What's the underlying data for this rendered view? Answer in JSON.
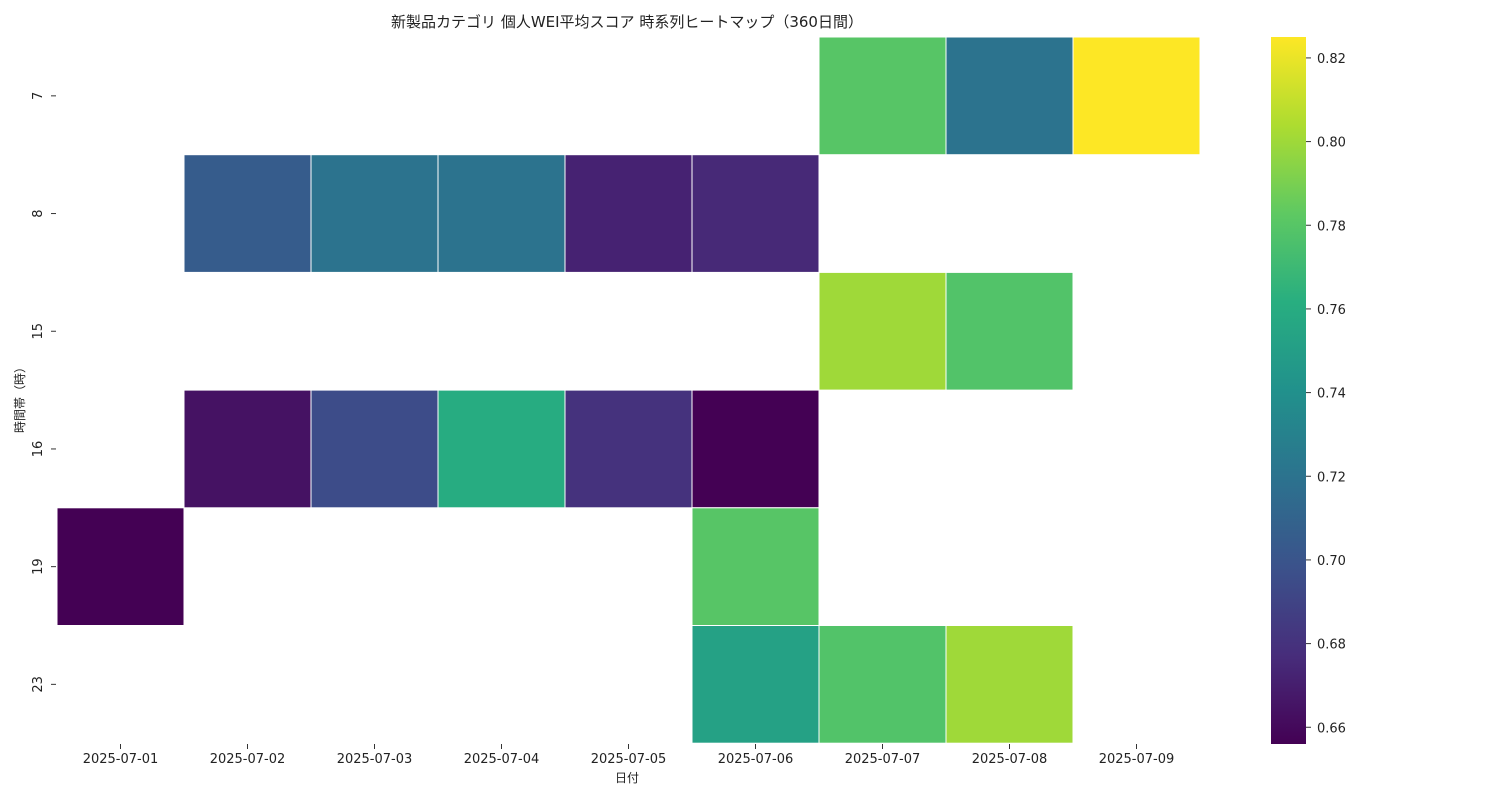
{
  "chart_data": {
    "type": "heatmap",
    "title": "新製品カテゴリ 個人WEI平均スコア 時系列ヒートマップ（360日間）",
    "xlabel": "日付",
    "ylabel": "時間帯（時）",
    "x": [
      "2025-07-01",
      "2025-07-02",
      "2025-07-03",
      "2025-07-04",
      "2025-07-05",
      "2025-07-06",
      "2025-07-07",
      "2025-07-08",
      "2025-07-09"
    ],
    "y": [
      "7",
      "8",
      "15",
      "16",
      "19",
      "23"
    ],
    "values": [
      [
        null,
        null,
        null,
        null,
        null,
        null,
        0.78,
        0.72,
        0.825
      ],
      [
        null,
        0.705,
        0.72,
        0.72,
        0.672,
        0.675,
        null,
        null,
        null
      ],
      [
        null,
        null,
        null,
        null,
        null,
        null,
        0.8,
        0.778,
        null
      ],
      [
        null,
        0.664,
        0.695,
        0.76,
        0.68,
        0.656,
        null,
        null,
        null
      ],
      [
        0.656,
        null,
        null,
        null,
        null,
        0.78,
        null,
        null,
        null
      ],
      [
        null,
        null,
        null,
        null,
        null,
        0.752,
        0.778,
        0.8,
        null
      ]
    ],
    "colormap": "viridis",
    "colorbar": {
      "min": 0.656,
      "max": 0.825,
      "ticks": [
        0.66,
        0.68,
        0.7,
        0.72,
        0.74,
        0.76,
        0.78,
        0.8,
        0.82
      ],
      "tick_labels": [
        "0.66",
        "0.68",
        "0.70",
        "0.72",
        "0.74",
        "0.76",
        "0.78",
        "0.80",
        "0.82"
      ]
    }
  }
}
